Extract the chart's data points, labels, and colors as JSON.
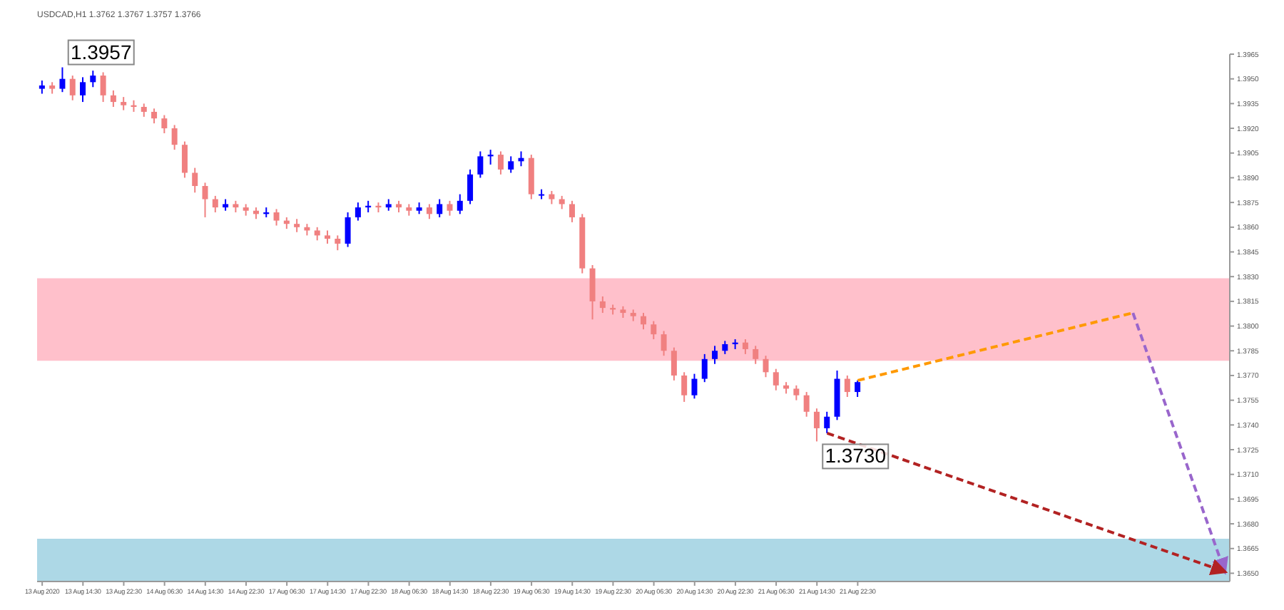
{
  "chart_data": {
    "type": "candlestick",
    "title": "USDCAD,H1 1.3762 1.3767 1.3757 1.3766",
    "categories": [
      "13 Aug 2020",
      null,
      null,
      null,
      "13 Aug 14:30",
      null,
      null,
      null,
      "13 Aug 22:30",
      null,
      null,
      null,
      "14 Aug 06:30",
      null,
      null,
      null,
      "14 Aug 14:30",
      null,
      null,
      null,
      "14 Aug 22:30",
      null,
      null,
      null,
      "17 Aug 06:30",
      null,
      null,
      null,
      "17 Aug 14:30",
      null,
      null,
      null,
      "17 Aug 22:30",
      null,
      null,
      null,
      "18 Aug 06:30",
      null,
      null,
      null,
      "18 Aug 14:30",
      null,
      null,
      null,
      "18 Aug 22:30",
      null,
      null,
      null,
      "19 Aug 06:30",
      null,
      null,
      null,
      "19 Aug 14:30",
      null,
      null,
      null,
      "19 Aug 22:30",
      null,
      null,
      null,
      "20 Aug 06:30",
      null,
      null,
      null,
      "20 Aug 14:30",
      null,
      null,
      null,
      "20 Aug 22:30",
      null,
      null,
      null,
      "21 Aug 06:30",
      null,
      null,
      null,
      "21 Aug 14:30",
      null,
      null,
      null,
      "21 Aug 22:30",
      null,
      null,
      null,
      null,
      null,
      null,
      null,
      null,
      null,
      null,
      null,
      null,
      null,
      null,
      null,
      null,
      null,
      null,
      null,
      null,
      null,
      null,
      null,
      null,
      null,
      null,
      null,
      null,
      null,
      null,
      null,
      null,
      null,
      null,
      null,
      null
    ],
    "ohlc": [
      [
        1.3944,
        1.3949,
        1.3941,
        1.3946
      ],
      [
        1.3946,
        1.3948,
        1.3941,
        1.3944
      ],
      [
        1.3944,
        1.3957,
        1.3942,
        1.395
      ],
      [
        1.395,
        1.3952,
        1.3937,
        1.394
      ],
      [
        1.394,
        1.3951,
        1.3936,
        1.3948
      ],
      [
        1.3948,
        1.3955,
        1.3945,
        1.3952
      ],
      [
        1.3952,
        1.3954,
        1.3936,
        1.394
      ],
      [
        1.394,
        1.3943,
        1.3933,
        1.3936
      ],
      [
        1.3936,
        1.3939,
        1.3931,
        1.3934
      ],
      [
        1.3934,
        1.3937,
        1.393,
        1.3933
      ],
      [
        1.3933,
        1.3935,
        1.3927,
        1.393
      ],
      [
        1.393,
        1.3932,
        1.3923,
        1.3926
      ],
      [
        1.3926,
        1.3928,
        1.3917,
        1.392
      ],
      [
        1.392,
        1.3922,
        1.3907,
        1.391
      ],
      [
        1.391,
        1.3912,
        1.389,
        1.3893
      ],
      [
        1.3893,
        1.3896,
        1.3881,
        1.3885
      ],
      [
        1.3885,
        1.3887,
        1.3866,
        1.3877
      ],
      [
        1.3877,
        1.3879,
        1.3869,
        1.3872
      ],
      [
        1.3872,
        1.3877,
        1.387,
        1.3874
      ],
      [
        1.3874,
        1.3876,
        1.3869,
        1.3872
      ],
      [
        1.3872,
        1.3874,
        1.3867,
        1.387
      ],
      [
        1.387,
        1.3872,
        1.3865,
        1.3868
      ],
      [
        1.3868,
        1.3872,
        1.3866,
        1.3869
      ],
      [
        1.3869,
        1.3871,
        1.3861,
        1.3864
      ],
      [
        1.3864,
        1.3866,
        1.3859,
        1.3862
      ],
      [
        1.3862,
        1.3865,
        1.3857,
        1.386
      ],
      [
        1.386,
        1.3862,
        1.3855,
        1.3858
      ],
      [
        1.3858,
        1.386,
        1.3852,
        1.3855
      ],
      [
        1.3855,
        1.3858,
        1.385,
        1.3853
      ],
      [
        1.3853,
        1.3855,
        1.3846,
        1.385
      ],
      [
        1.385,
        1.3869,
        1.3848,
        1.3866
      ],
      [
        1.3866,
        1.3875,
        1.3864,
        1.3872
      ],
      [
        1.3872,
        1.3876,
        1.3869,
        1.3873
      ],
      [
        1.3873,
        1.3875,
        1.3869,
        1.3872
      ],
      [
        1.3872,
        1.3877,
        1.387,
        1.3874
      ],
      [
        1.3874,
        1.3876,
        1.3869,
        1.3872
      ],
      [
        1.3872,
        1.3874,
        1.3867,
        1.387
      ],
      [
        1.387,
        1.3875,
        1.3868,
        1.3872
      ],
      [
        1.3872,
        1.3874,
        1.3865,
        1.3868
      ],
      [
        1.3868,
        1.3877,
        1.3866,
        1.3874
      ],
      [
        1.3874,
        1.3876,
        1.3867,
        1.387
      ],
      [
        1.387,
        1.388,
        1.3868,
        1.3876
      ],
      [
        1.3876,
        1.3895,
        1.3874,
        1.3892
      ],
      [
        1.3892,
        1.3906,
        1.389,
        1.3903
      ],
      [
        1.3903,
        1.3907,
        1.3898,
        1.3904
      ],
      [
        1.3904,
        1.3906,
        1.3892,
        1.3895
      ],
      [
        1.3895,
        1.3903,
        1.3893,
        1.39
      ],
      [
        1.39,
        1.3906,
        1.3897,
        1.3902
      ],
      [
        1.3902,
        1.3904,
        1.3877,
        1.388
      ],
      [
        1.388,
        1.3883,
        1.3877,
        1.388
      ],
      [
        1.388,
        1.3882,
        1.3874,
        1.3877
      ],
      [
        1.3877,
        1.3879,
        1.3871,
        1.3874
      ],
      [
        1.3874,
        1.3876,
        1.3863,
        1.3866
      ],
      [
        1.3866,
        1.3868,
        1.3832,
        1.3835
      ],
      [
        1.3835,
        1.3837,
        1.3804,
        1.3815
      ],
      [
        1.3815,
        1.3818,
        1.3808,
        1.3811
      ],
      [
        1.3811,
        1.3813,
        1.3807,
        1.381
      ],
      [
        1.381,
        1.3812,
        1.3805,
        1.3808
      ],
      [
        1.3808,
        1.381,
        1.3803,
        1.3806
      ],
      [
        1.3806,
        1.3808,
        1.3798,
        1.3801
      ],
      [
        1.3801,
        1.3803,
        1.3792,
        1.3795
      ],
      [
        1.3795,
        1.3797,
        1.3782,
        1.3785
      ],
      [
        1.3785,
        1.3787,
        1.3767,
        1.377
      ],
      [
        1.377,
        1.3772,
        1.3754,
        1.3758
      ],
      [
        1.3758,
        1.3771,
        1.3756,
        1.3768
      ],
      [
        1.3768,
        1.3783,
        1.3766,
        1.378
      ],
      [
        1.378,
        1.3788,
        1.3777,
        1.3785
      ],
      [
        1.3785,
        1.3791,
        1.3783,
        1.3789
      ],
      [
        1.3789,
        1.3792,
        1.3786,
        1.379
      ],
      [
        1.379,
        1.3792,
        1.3783,
        1.3786
      ],
      [
        1.3786,
        1.3788,
        1.3777,
        1.378
      ],
      [
        1.378,
        1.3782,
        1.3769,
        1.3772
      ],
      [
        1.3772,
        1.3774,
        1.3761,
        1.3764
      ],
      [
        1.3764,
        1.3766,
        1.3759,
        1.3762
      ],
      [
        1.3762,
        1.3764,
        1.3755,
        1.3758
      ],
      [
        1.3758,
        1.376,
        1.3745,
        1.3748
      ],
      [
        1.3748,
        1.375,
        1.373,
        1.3738
      ],
      [
        1.3738,
        1.3748,
        1.3735,
        1.3745
      ],
      [
        1.3745,
        1.3773,
        1.3743,
        1.3768
      ],
      [
        1.3768,
        1.377,
        1.3757,
        1.376
      ],
      [
        1.376,
        1.3767,
        1.3757,
        1.3766
      ],
      null,
      null,
      null,
      null,
      null,
      null,
      null,
      null,
      null,
      null,
      null,
      null,
      null,
      null,
      null,
      null,
      null,
      null,
      null,
      null,
      null,
      null,
      null,
      null,
      null,
      null,
      null,
      null,
      null,
      null,
      null,
      null,
      null,
      null,
      null,
      null
    ],
    "colors": [
      "#0000ff",
      "#f08080",
      "#0000ff",
      "#f08080",
      "#0000ff",
      "#0000ff",
      "#f08080",
      "#f08080",
      "#f08080",
      "#f08080",
      "#f08080",
      "#f08080",
      "#f08080",
      "#f08080",
      "#f08080",
      "#f08080",
      "#f08080",
      "#f08080",
      "#0000ff",
      "#f08080",
      "#f08080",
      "#f08080",
      "#0000ff",
      "#f08080",
      "#f08080",
      "#f08080",
      "#f08080",
      "#f08080",
      "#f08080",
      "#f08080",
      "#0000ff",
      "#0000ff",
      "#0000ff",
      "#f08080",
      "#0000ff",
      "#f08080",
      "#f08080",
      "#0000ff",
      "#f08080",
      "#0000ff",
      "#f08080",
      "#0000ff",
      "#0000ff",
      "#0000ff",
      "#0000ff",
      "#f08080",
      "#0000ff",
      "#0000ff",
      "#f08080",
      "#0000ff",
      "#f08080",
      "#f08080",
      "#f08080",
      "#f08080",
      "#f08080",
      "#f08080",
      "#f08080",
      "#f08080",
      "#f08080",
      "#f08080",
      "#f08080",
      "#f08080",
      "#f08080",
      "#f08080",
      "#0000ff",
      "#0000ff",
      "#0000ff",
      "#0000ff",
      "#0000ff",
      "#f08080",
      "#f08080",
      "#f08080",
      "#f08080",
      "#f08080",
      "#f08080",
      "#f08080",
      "#f08080",
      "#0000ff",
      "#0000ff",
      "#f08080",
      "#0000ff",
      null,
      null,
      null,
      null,
      null,
      null,
      null,
      null,
      null,
      null,
      null,
      null,
      null,
      null,
      null,
      null,
      null,
      null,
      null,
      null,
      null,
      null,
      null,
      null,
      null,
      null,
      null,
      null,
      null,
      null,
      null,
      null,
      null,
      null,
      null,
      null
    ],
    "series": [
      {
        "type": "line",
        "color": "#ff9900",
        "line_style": "dashed",
        "values": [
          null,
          null,
          null,
          null,
          null,
          null,
          null,
          null,
          null,
          null,
          null,
          null,
          null,
          null,
          null,
          null,
          null,
          null,
          null,
          null,
          null,
          null,
          null,
          null,
          null,
          null,
          null,
          null,
          null,
          null,
          null,
          null,
          null,
          null,
          null,
          null,
          null,
          null,
          null,
          null,
          null,
          null,
          null,
          null,
          null,
          null,
          null,
          null,
          null,
          null,
          null,
          null,
          null,
          null,
          null,
          null,
          null,
          null,
          null,
          null,
          null,
          null,
          null,
          null,
          null,
          null,
          null,
          null,
          null,
          null,
          null,
          null,
          null,
          null,
          null,
          null,
          null,
          null,
          null,
          null,
          1.3767,
          null,
          null,
          null,
          null,
          null,
          null,
          null,
          null,
          null,
          null,
          null,
          null,
          null,
          null,
          null,
          null,
          null,
          null,
          null,
          null,
          null,
          null,
          null,
          null,
          null,
          null,
          1.3808,
          null,
          null,
          null,
          null,
          null,
          null,
          null,
          null,
          null
        ]
      },
      {
        "type": "line",
        "color": "#9966cc",
        "line_style": "dashed",
        "values": [
          null,
          null,
          null,
          null,
          null,
          null,
          null,
          null,
          null,
          null,
          null,
          null,
          null,
          null,
          null,
          null,
          null,
          null,
          null,
          null,
          null,
          null,
          null,
          null,
          null,
          null,
          null,
          null,
          null,
          null,
          null,
          null,
          null,
          null,
          null,
          null,
          null,
          null,
          null,
          null,
          null,
          null,
          null,
          null,
          null,
          null,
          null,
          null,
          null,
          null,
          null,
          null,
          null,
          null,
          null,
          null,
          null,
          null,
          null,
          null,
          null,
          null,
          null,
          null,
          null,
          null,
          null,
          null,
          null,
          null,
          null,
          null,
          null,
          null,
          null,
          null,
          null,
          null,
          null,
          null,
          null,
          null,
          null,
          null,
          null,
          null,
          null,
          null,
          null,
          null,
          null,
          null,
          null,
          null,
          null,
          null,
          null,
          null,
          null,
          null,
          null,
          null,
          null,
          null,
          null,
          null,
          null,
          1.3808,
          null,
          null,
          null,
          null,
          null,
          null,
          null,
          null,
          1.3651
        ]
      },
      {
        "type": "line",
        "color": "#b22222",
        "line_style": "dashed",
        "values": [
          null,
          null,
          null,
          null,
          null,
          null,
          null,
          null,
          null,
          null,
          null,
          null,
          null,
          null,
          null,
          null,
          null,
          null,
          null,
          null,
          null,
          null,
          null,
          null,
          null,
          null,
          null,
          null,
          null,
          null,
          null,
          null,
          null,
          null,
          null,
          null,
          null,
          null,
          null,
          null,
          null,
          null,
          null,
          null,
          null,
          null,
          null,
          null,
          null,
          null,
          null,
          null,
          null,
          null,
          null,
          null,
          null,
          null,
          null,
          null,
          null,
          null,
          null,
          null,
          null,
          null,
          null,
          null,
          null,
          null,
          null,
          null,
          null,
          null,
          null,
          null,
          null,
          1.3735,
          null,
          null,
          null,
          null,
          null,
          null,
          null,
          null,
          null,
          null,
          null,
          null,
          null,
          null,
          null,
          null,
          null,
          null,
          null,
          null,
          null,
          null,
          null,
          null,
          null,
          null,
          null,
          null,
          null,
          null,
          null,
          null,
          null,
          null,
          null,
          null,
          null,
          null,
          1.3651
        ]
      }
    ],
    "ylim": [
      1.3645,
      1.3965
    ],
    "yticks": [
      {
        "value": 1.365,
        "label": "1.3650"
      },
      1.3665,
      {
        "value": 1.368,
        "label": "1.3680"
      },
      1.3695,
      {
        "value": 1.371,
        "label": "1.3710"
      },
      1.3725,
      {
        "value": 1.374,
        "label": "1.3740"
      },
      1.3755,
      {
        "value": 1.377,
        "label": "1.3770"
      },
      1.3785,
      {
        "value": 1.38,
        "label": "1.3800"
      },
      1.3815,
      {
        "value": 1.383,
        "label": "1.3830"
      },
      1.3845,
      {
        "value": 1.386,
        "label": "1.3860"
      },
      1.3875,
      {
        "value": 1.389,
        "label": "1.3890"
      },
      1.3905,
      {
        "value": 1.392,
        "label": "1.3920"
      },
      1.3935,
      {
        "value": 1.395,
        "label": "1.3950"
      },
      1.3965
    ],
    "bands": [
      {
        "axis": "y",
        "from": 1.3779,
        "to": 1.3829,
        "color": "#ffc0cb"
      },
      {
        "axis": "y",
        "from": 1.3645,
        "to": 1.3671,
        "color": "#add8e6"
      }
    ],
    "annotations": [
      {
        "text": "1.3957",
        "y": 1.3957
      },
      {
        "text": "1.3730",
        "y": 1.373
      }
    ]
  }
}
